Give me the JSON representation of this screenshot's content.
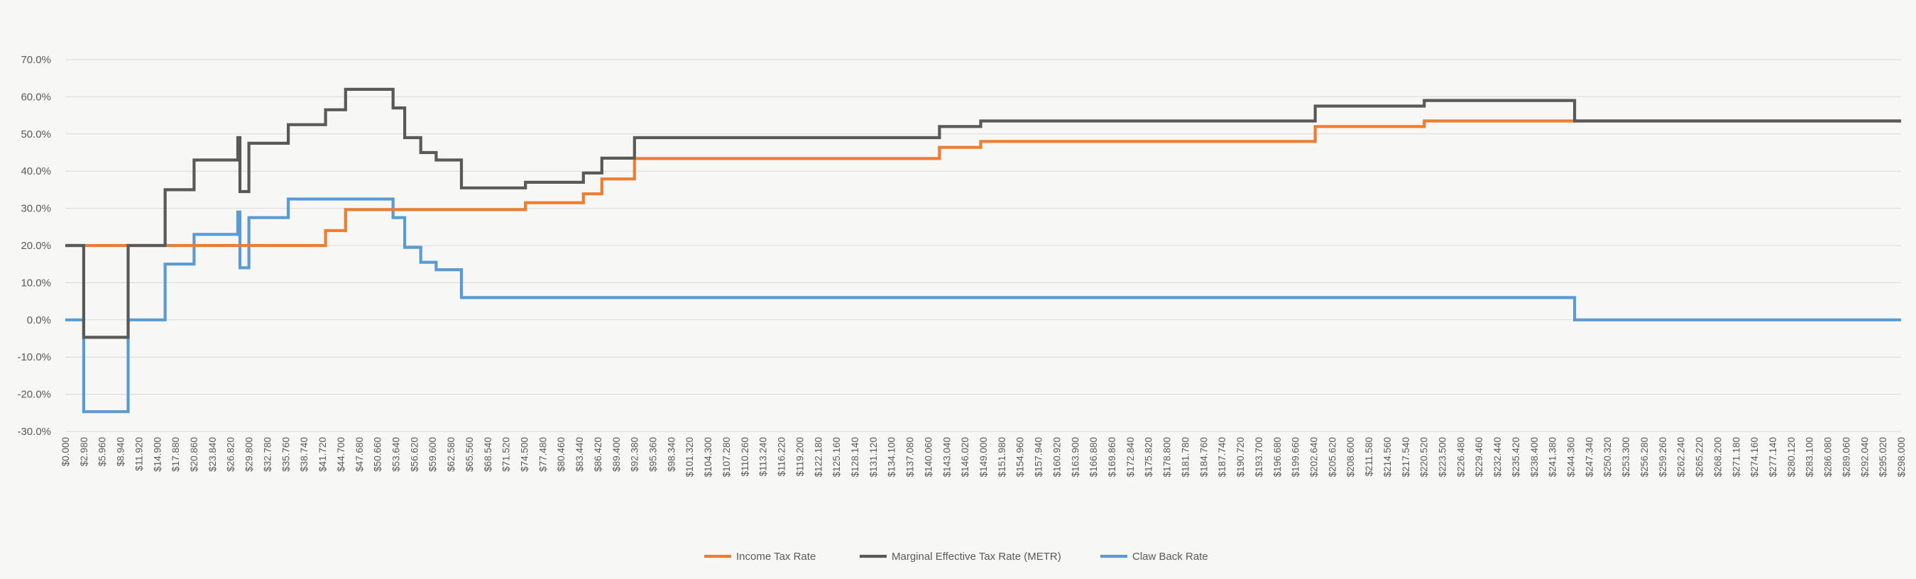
{
  "chart_data": {
    "type": "line",
    "step": true,
    "title": "",
    "xlabel": "",
    "ylabel": "",
    "ylim": [
      -30,
      70
    ],
    "y_ticks": [
      "70.0%",
      "60.0%",
      "50.0%",
      "40.0%",
      "30.0%",
      "20.0%",
      "10.0%",
      "0.0%",
      "-10.0%",
      "-20.0%",
      "-30.0%"
    ],
    "y_tick_values": [
      70,
      60,
      50,
      40,
      30,
      20,
      10,
      0,
      -10,
      -20,
      -30
    ],
    "x_range": [
      0,
      298000
    ],
    "x_tick_step": 2980,
    "x_tick_labels": [
      "$0.000",
      "$2.980",
      "$5.960",
      "$8.940",
      "$11.920",
      "$14.900",
      "$17.880",
      "$20.860",
      "$23.840",
      "$26.820",
      "$29.800",
      "$32.780",
      "$35.760",
      "$38.740",
      "$41.720",
      "$44.700",
      "$47.680",
      "$50.660",
      "$53.640",
      "$56.620",
      "$59.600",
      "$62.580",
      "$65.560",
      "$68.540",
      "$71.520",
      "$74.500",
      "$77.480",
      "$80.460",
      "$83.440",
      "$86.420",
      "$89.400",
      "$92.380",
      "$95.360",
      "$98.340",
      "$101.320",
      "$104.300",
      "$107.280",
      "$110.260",
      "$113.240",
      "$116.220",
      "$119.200",
      "$122.180",
      "$125.160",
      "$128.140",
      "$131.120",
      "$134.100",
      "$137.080",
      "$140.060",
      "$143.040",
      "$146.020",
      "$149.000",
      "$151.980",
      "$154.960",
      "$157.940",
      "$160.920",
      "$163.900",
      "$166.880",
      "$169.860",
      "$172.840",
      "$175.820",
      "$178.800",
      "$181.780",
      "$184.760",
      "$187.740",
      "$190.720",
      "$193.700",
      "$196.680",
      "$199.660",
      "$202.640",
      "$205.620",
      "$208.600",
      "$211.580",
      "$214.560",
      "$217.540",
      "$220.520",
      "$223.500",
      "$226.480",
      "$229.460",
      "$232.440",
      "$235.420",
      "$238.400",
      "$241.380",
      "$244.360",
      "$247.340",
      "$250.320",
      "$253.300",
      "$256.280",
      "$259.260",
      "$262.240",
      "$265.220",
      "$268.200",
      "$271.180",
      "$274.160",
      "$277.140",
      "$280.120",
      "$283.100",
      "$286.080",
      "$289.060",
      "$292.040",
      "$295.020",
      "$298.000"
    ],
    "grid": true,
    "legend_position": "bottom",
    "series": [
      {
        "name": "Income Tax Rate",
        "color": "#ed7d31",
        "x": [
          0,
          42250,
          45500,
          74700,
          84100,
          87100,
          92400,
          141900,
          148600,
          202900,
          220600,
          298000
        ],
        "y": [
          20,
          24,
          29.65,
          31.5,
          33.9,
          37.9,
          43.4,
          46.4,
          48,
          52,
          53.5,
          53.5
        ]
      },
      {
        "name": "Marginal Effective Tax Rate (METR)",
        "color": "#595959",
        "x": [
          0,
          2980,
          10200,
          16200,
          20900,
          28000,
          28350,
          29800,
          36200,
          42250,
          45500,
          53200,
          55100,
          57700,
          60200,
          64300,
          74700,
          84100,
          87100,
          92400,
          141900,
          148600,
          202900,
          220600,
          245000,
          298000
        ],
        "y": [
          20,
          -4.7,
          20,
          35,
          43,
          49,
          34.5,
          47.5,
          52.5,
          56.5,
          62,
          57,
          49,
          45,
          43,
          35.5,
          37,
          39.5,
          43.5,
          49,
          52,
          53.5,
          57.5,
          59,
          53.5,
          53.5
        ],
        "x_peak_end": 53200
      },
      {
        "name": "Claw Back Rate",
        "color": "#5b9bd5",
        "x": [
          0,
          2980,
          10200,
          16200,
          20900,
          28000,
          28350,
          29800,
          36200,
          53200,
          55100,
          57700,
          60200,
          64300,
          245000,
          298000
        ],
        "y": [
          0,
          -24.7,
          0,
          15,
          23,
          29,
          14,
          27.5,
          32.5,
          27.5,
          19.5,
          15.5,
          13.5,
          6,
          0,
          0
        ]
      }
    ]
  }
}
